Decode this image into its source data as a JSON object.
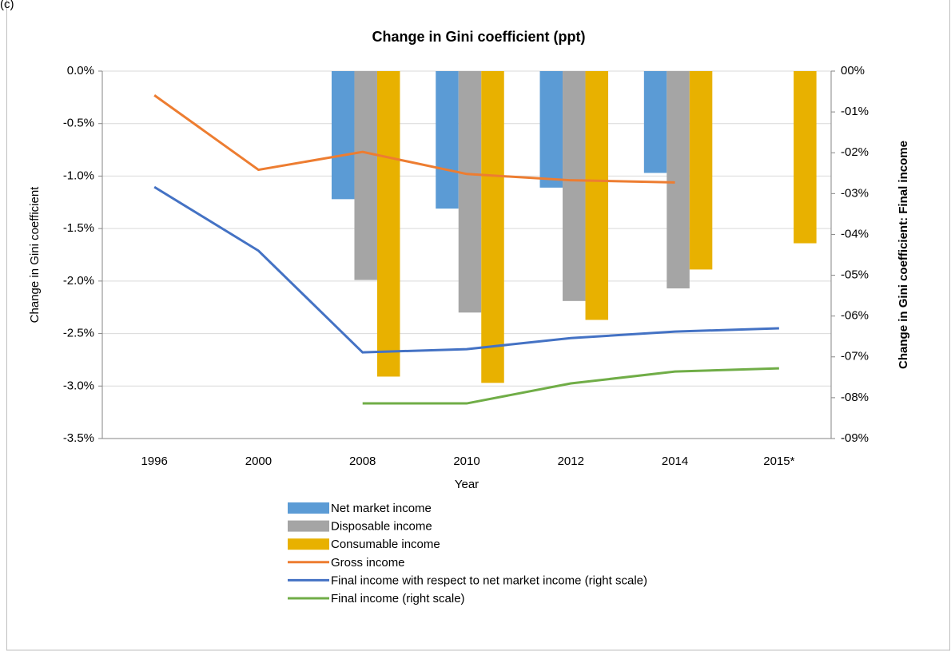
{
  "chart_data": {
    "type": "bar",
    "panel_label": "(c)",
    "title": "Change in Gini coefficient (ppt)",
    "x_label": "Year",
    "y_label": "Change in Gini coefficient",
    "y2_label": "Change in Gini coefficient: Final income",
    "categories": [
      "1996",
      "2000",
      "2008",
      "2010",
      "2012",
      "2014",
      "2015*"
    ],
    "ylim": [
      -3.5,
      0
    ],
    "yticks": [
      {
        "value": 0,
        "label": "0.0%"
      },
      {
        "value": -0.5,
        "label": "-0.5%"
      },
      {
        "value": -1,
        "label": "-1.0%"
      },
      {
        "value": -1.5,
        "label": "-1.5%"
      },
      {
        "value": -2,
        "label": "-2.0%"
      },
      {
        "value": -2.5,
        "label": "-2.5%"
      },
      {
        "value": -3,
        "label": "-3.0%"
      },
      {
        "value": -3.5,
        "label": "-3.5%"
      }
    ],
    "y2lim": [
      -9,
      0
    ],
    "y2ticks": [
      {
        "value": 0,
        "label": "00%"
      },
      {
        "value": -1,
        "label": "-01%"
      },
      {
        "value": -2,
        "label": "-02%"
      },
      {
        "value": -3,
        "label": "-03%"
      },
      {
        "value": -4,
        "label": "-04%"
      },
      {
        "value": -5,
        "label": "-05%"
      },
      {
        "value": -6,
        "label": "-06%"
      },
      {
        "value": -7,
        "label": "-07%"
      },
      {
        "value": -8,
        "label": "-08%"
      },
      {
        "value": -9,
        "label": "-09%"
      }
    ],
    "grid": true,
    "legend": "bottom",
    "series": [
      {
        "name": "Net market income",
        "type": "bar",
        "color": "#5b9bd5",
        "values": [
          null,
          null,
          -1.22,
          -1.31,
          -1.11,
          -0.97,
          null
        ]
      },
      {
        "name": "Disposable income",
        "type": "bar",
        "color": "#a5a5a5",
        "values": [
          null,
          null,
          -1.99,
          -2.3,
          -2.19,
          -2.07,
          null
        ]
      },
      {
        "name": "Consumable income",
        "type": "bar",
        "color": "#e8b100",
        "values": [
          null,
          null,
          -2.91,
          -2.97,
          -2.37,
          -1.89,
          -1.64
        ]
      },
      {
        "name": "Gross income",
        "type": "line",
        "color": "#ed7d31",
        "values": [
          -0.23,
          -0.94,
          -0.77,
          -0.98,
          -1.04,
          -1.06,
          null
        ]
      },
      {
        "name": "Final income with respect to net market income (right scale)",
        "type": "line",
        "axis": "y2",
        "color": "#4472c4",
        "values": [
          -2.84,
          -4.4,
          -6.89,
          -6.81,
          -6.54,
          -6.38,
          -6.3
        ]
      },
      {
        "name": "Final income (right scale)",
        "type": "line",
        "axis": "y2",
        "color": "#70ad47",
        "values": [
          null,
          null,
          -8.14,
          -8.14,
          -7.65,
          -7.36,
          -7.28
        ]
      }
    ]
  }
}
